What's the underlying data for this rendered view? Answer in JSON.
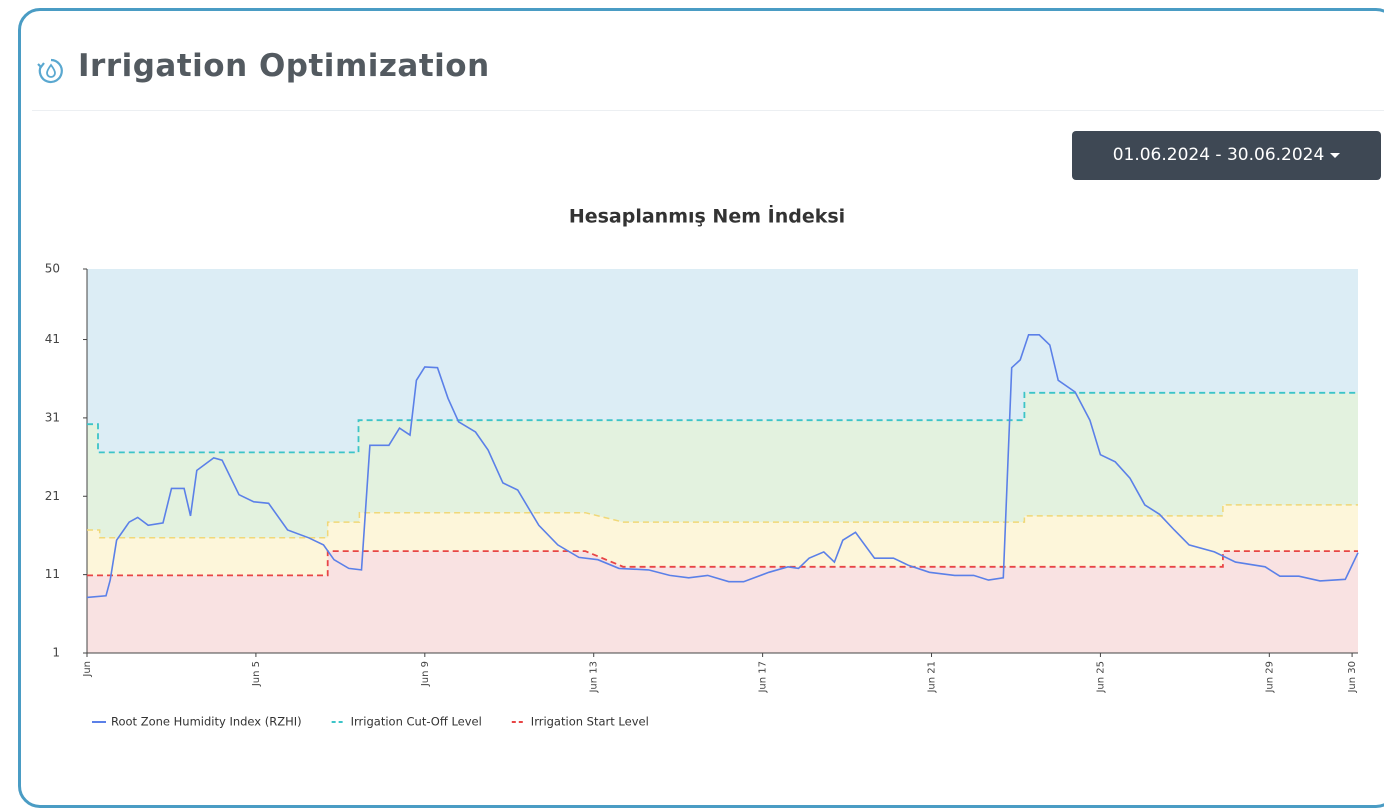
{
  "header": {
    "title": "Irrigation Optimization"
  },
  "date_range": "01.06.2024 - 30.06.2024",
  "chart_data": {
    "type": "line",
    "title": "Hesaplanmış Nem İndeksi",
    "xlim": [
      1,
      31.1
    ],
    "xticks": [
      {
        "value": 1,
        "label": "Jun"
      },
      {
        "value": 5,
        "label": "Jun 5"
      },
      {
        "value": 9,
        "label": "Jun 9"
      },
      {
        "value": 13,
        "label": "Jun 13"
      },
      {
        "value": 17,
        "label": "Jun 17"
      },
      {
        "value": 21,
        "label": "Jun 21"
      },
      {
        "value": 25,
        "label": "Jun 25"
      },
      {
        "value": 29,
        "label": "Jun 29"
      },
      {
        "value": 30.96,
        "label": "Jun 30"
      }
    ],
    "ylim": [
      1,
      50
    ],
    "yticks": [
      1,
      11,
      21,
      31,
      41,
      50
    ],
    "legend": "bottom-left",
    "band_colors": [
      "#dcedf5",
      "#e3f2df",
      "#fdf6da",
      "#f9e2e2"
    ],
    "series": [
      {
        "name": "Root Zone Humidity Index (RZHI)",
        "color": "#5b80e8",
        "dashed": false,
        "x": [
          1.0,
          1.45,
          1.55,
          1.7,
          2.0,
          2.2,
          2.45,
          2.8,
          3.0,
          3.3,
          3.45,
          3.6,
          4.0,
          4.2,
          4.6,
          4.95,
          5.3,
          5.75,
          6.25,
          6.6,
          6.85,
          7.2,
          7.5,
          7.7,
          8.15,
          8.4,
          8.65,
          8.8,
          9.0,
          9.3,
          9.55,
          9.8,
          10.2,
          10.5,
          10.85,
          11.2,
          11.7,
          12.15,
          12.65,
          13.1,
          13.6,
          14.3,
          14.8,
          15.25,
          15.7,
          16.2,
          16.55,
          17.15,
          17.6,
          17.85,
          18.1,
          18.45,
          18.7,
          18.9,
          19.2,
          19.65,
          20.1,
          20.45,
          20.95,
          21.55,
          22.0,
          22.35,
          22.7,
          22.9,
          23.1,
          23.3,
          23.55,
          23.8,
          24.0,
          24.4,
          24.75,
          25.0,
          25.35,
          25.7,
          26.05,
          26.4,
          26.75,
          27.1,
          27.7,
          28.2,
          28.9,
          29.25,
          29.7,
          30.2,
          30.8,
          31.1
        ],
        "values": [
          8.1,
          8.3,
          10.3,
          15.4,
          17.7,
          18.3,
          17.3,
          17.6,
          22.0,
          22.0,
          18.5,
          24.3,
          25.9,
          25.6,
          21.2,
          20.3,
          20.1,
          16.7,
          15.7,
          14.8,
          12.9,
          11.8,
          11.6,
          27.5,
          27.5,
          29.7,
          28.8,
          35.8,
          37.5,
          37.4,
          33.5,
          30.5,
          29.2,
          26.9,
          22.7,
          21.8,
          17.3,
          14.8,
          13.2,
          12.9,
          11.8,
          11.6,
          10.9,
          10.6,
          10.9,
          10.1,
          10.1,
          11.3,
          12.0,
          11.8,
          13.1,
          13.9,
          12.6,
          15.4,
          16.4,
          13.1,
          13.1,
          12.2,
          11.3,
          10.9,
          10.9,
          10.3,
          10.6,
          37.4,
          38.4,
          41.6,
          41.6,
          40.3,
          35.8,
          34.3,
          30.7,
          26.3,
          25.4,
          23.3,
          19.9,
          18.7,
          16.7,
          14.8,
          13.9,
          12.6,
          12.0,
          10.8,
          10.8,
          10.2,
          10.4,
          13.8
        ]
      },
      {
        "name": "Irrigation Cut-Off Level",
        "color": "#3cc4c8",
        "dashed": true,
        "x": [
          1,
          1.26,
          1.26,
          7.43,
          7.43,
          23.2,
          23.2,
          31.1
        ],
        "values": [
          30.2,
          30.2,
          26.6,
          26.6,
          30.7,
          30.7,
          34.2,
          34.2
        ]
      },
      {
        "name": "Irrigation Start Level",
        "color": "#e84545",
        "dashed": true,
        "x": [
          1,
          6.7,
          6.7,
          12.8,
          13.7,
          27.9,
          27.9,
          31.1
        ],
        "values": [
          10.9,
          10.9,
          14,
          14,
          12,
          12,
          14,
          14
        ]
      }
    ],
    "mid_level": {
      "color": "#f0d878",
      "dashed": true,
      "x": [
        1,
        1.3,
        1.3,
        6.7,
        6.7,
        7.45,
        7.45,
        12.8,
        13.7,
        23.2,
        23.2,
        27.9,
        27.9,
        31.1
      ],
      "values": [
        16.7,
        16.7,
        15.7,
        15.7,
        17.7,
        17.7,
        18.9,
        18.9,
        17.7,
        17.7,
        18.5,
        18.5,
        19.9,
        19.9
      ]
    }
  }
}
